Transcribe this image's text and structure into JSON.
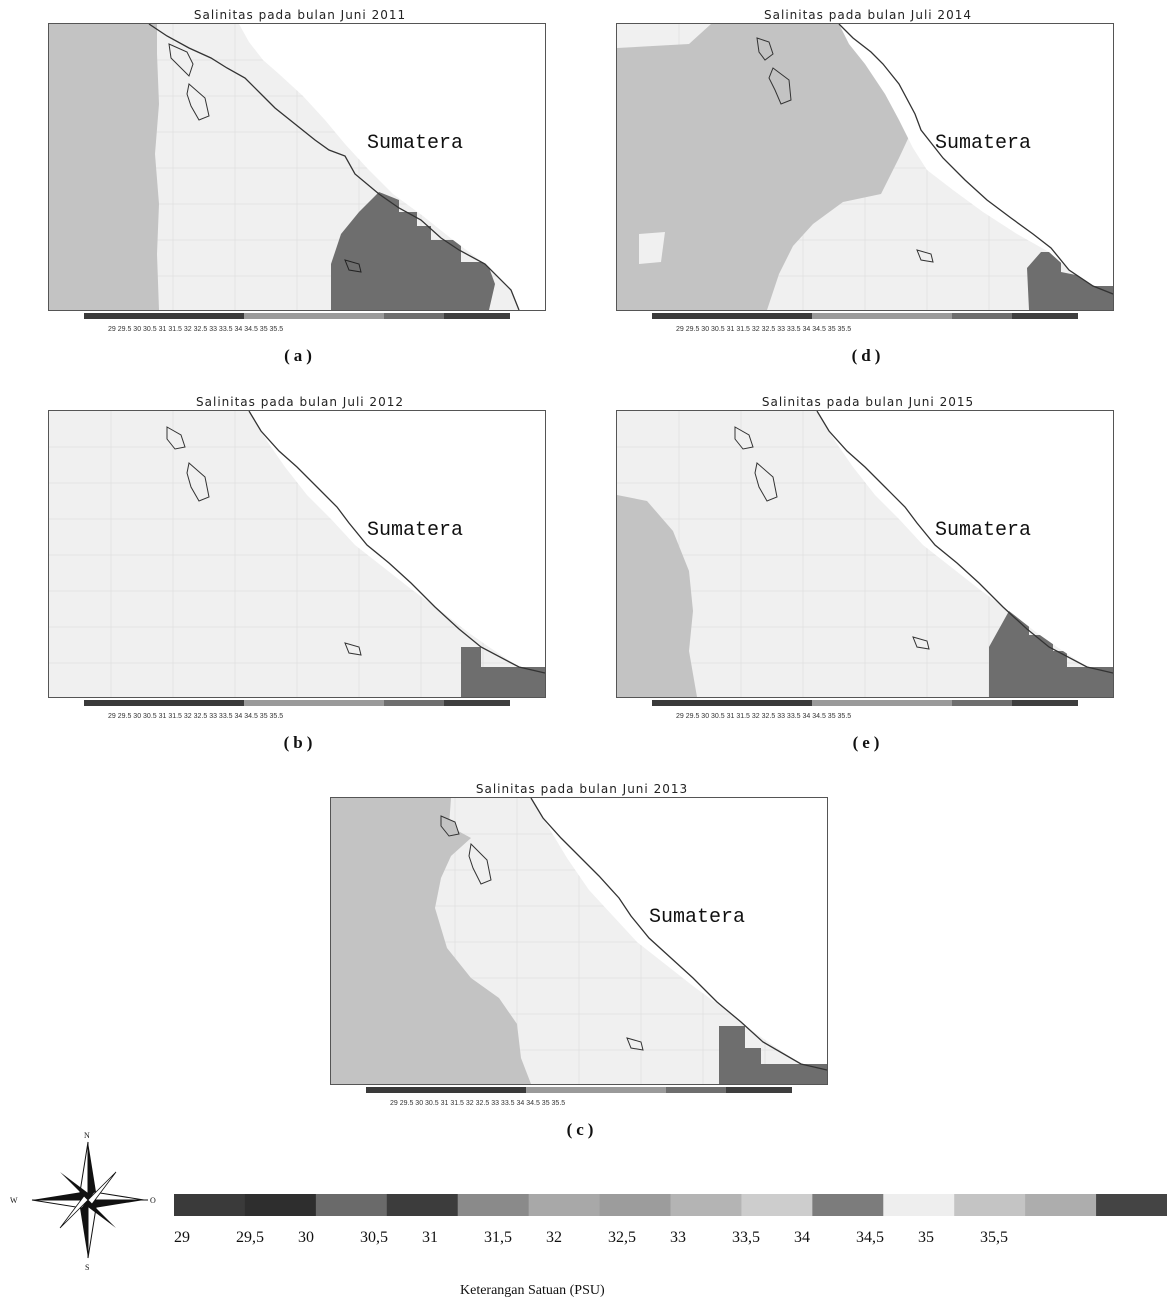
{
  "region_label": "Sumatera",
  "panels": [
    {
      "id": "a",
      "title": "Salinitas pada bulan Juni 2011",
      "label": "(a)"
    },
    {
      "id": "b",
      "title": "Salinitas pada bulan Juli 2012",
      "label": "(b)"
    },
    {
      "id": "c",
      "title": "Salinitas pada bulan Juni 2013",
      "label": "(c)"
    },
    {
      "id": "d",
      "title": "Salinitas pada bulan Juli 2014",
      "label": "(d)"
    },
    {
      "id": "e",
      "title": "Salinitas pada bulan Juni 2015",
      "label": "(e)"
    }
  ],
  "legend": {
    "title": "Keterangan Satuan (PSU)",
    "labels": [
      "29",
      "29,5",
      "30",
      "30,5",
      "31",
      "31,5",
      "32",
      "32,5",
      "33",
      "33,5",
      "34",
      "34,5",
      "35",
      "35,5"
    ],
    "colors": [
      "#3a3a3a",
      "#2e2e2e",
      "#6a6a6a",
      "#3c3c3c",
      "#8a8a8a",
      "#a8a8a8",
      "#9c9c9c",
      "#b4b4b4",
      "#cdcdcd",
      "#7c7c7c",
      "#eeeeee",
      "#c4c4c4",
      "#adadad",
      "#444444"
    ]
  },
  "compass": {
    "north": "N",
    "south": "S",
    "west": "W",
    "east": "O"
  },
  "colors": {
    "ocean_light": "#f0f0f0",
    "ocean_mid": "#c3c3c3",
    "ocean_dark": "#6e6e6e",
    "land": "#ffffff",
    "coast": "#333333"
  }
}
